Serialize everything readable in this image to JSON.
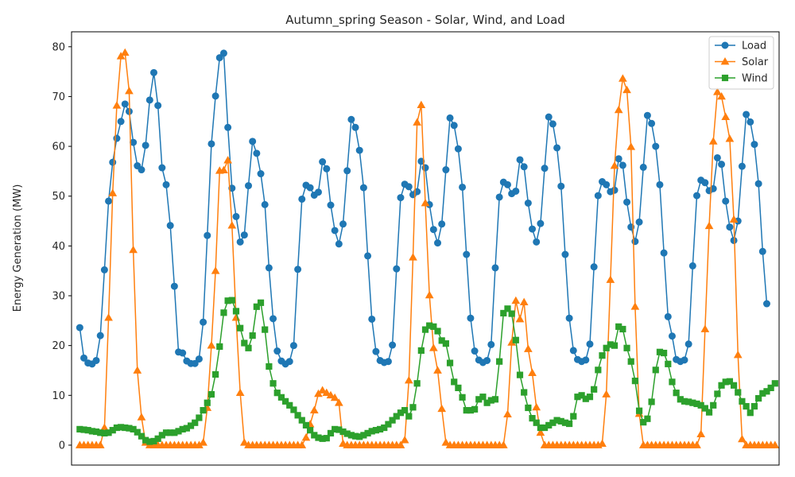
{
  "chart_data": {
    "type": "line",
    "title": "Autumn_spring Season - Solar, Wind, and Load",
    "xlabel": "",
    "ylabel": "Energy Generation (MW)",
    "xlim": [
      -2,
      170
    ],
    "ylim": [
      -4,
      83
    ],
    "yticks": [
      0,
      10,
      20,
      30,
      40,
      50,
      60,
      70,
      80
    ],
    "grid": false,
    "legend_position": "top-right",
    "series": [
      {
        "name": "Load",
        "color": "#1f77b4",
        "marker": "circle",
        "values": [
          23.6,
          17.5,
          16.5,
          16.3,
          17.0,
          22.0,
          35.2,
          49.0,
          56.8,
          61.6,
          65.0,
          68.5,
          67.0,
          60.8,
          56.1,
          55.3,
          60.2,
          69.3,
          74.8,
          68.2,
          55.7,
          52.3,
          44.1,
          31.9,
          18.7,
          18.5,
          16.9,
          16.4,
          16.4,
          17.3,
          24.7,
          42.1,
          60.5,
          70.1,
          77.8,
          78.7,
          63.8,
          51.6,
          45.9,
          40.8,
          42.2,
          52.1,
          61.0,
          58.6,
          54.5,
          48.3,
          35.6,
          25.4,
          18.9,
          16.9,
          16.3,
          16.8,
          20.0,
          35.3,
          49.4,
          52.2,
          51.7,
          50.2,
          50.8,
          56.9,
          55.5,
          48.2,
          43.1,
          40.4,
          44.4,
          55.1,
          65.4,
          63.8,
          59.2,
          51.7,
          38.0,
          25.3,
          18.8,
          17.0,
          16.6,
          16.8,
          20.1,
          35.4,
          49.7,
          52.4,
          51.9,
          50.3,
          50.9,
          57.0,
          55.7,
          48.3,
          43.3,
          40.6,
          44.4,
          55.3,
          65.7,
          64.2,
          59.5,
          51.8,
          38.3,
          25.5,
          18.9,
          17.1,
          16.6,
          17.0,
          20.2,
          35.6,
          49.8,
          52.8,
          52.3,
          50.5,
          51.0,
          57.3,
          55.9,
          48.6,
          43.4,
          40.8,
          44.5,
          55.6,
          65.9,
          64.5,
          59.7,
          52.0,
          38.3,
          25.5,
          19.0,
          17.2,
          16.8,
          17.1,
          20.3,
          35.8,
          50.1,
          52.9,
          52.3,
          50.9,
          51.2,
          57.5,
          56.2,
          48.8,
          43.8,
          40.9,
          44.8,
          55.8,
          66.2,
          64.6,
          60.0,
          52.3,
          38.6,
          25.8,
          21.9,
          17.2,
          16.8,
          17.1,
          20.3,
          36.0,
          50.1,
          53.2,
          52.7,
          51.1,
          51.5,
          57.7,
          56.4,
          49.0,
          43.8,
          41.1,
          45.0,
          56.0,
          66.4,
          64.9,
          60.4,
          52.5,
          38.9,
          28.4
        ]
      },
      {
        "name": "Solar",
        "color": "#ff7f0e",
        "marker": "triangle",
        "values": [
          0,
          0,
          0,
          0,
          0,
          0,
          3.5,
          25.6,
          50.6,
          68.2,
          78.1,
          78.8,
          71.1,
          39.2,
          15.0,
          5.6,
          0.5,
          0,
          0,
          0,
          0,
          0,
          0,
          0,
          0,
          0,
          0,
          0,
          0,
          0,
          0.5,
          7.5,
          20.0,
          35.0,
          55.1,
          55.2,
          57.2,
          44.1,
          25.6,
          10.5,
          0.5,
          0,
          0,
          0,
          0,
          0,
          0,
          0,
          0,
          0,
          0,
          0,
          0,
          0,
          0,
          1.5,
          4.2,
          7.0,
          10.3,
          11.0,
          10.5,
          10.0,
          9.5,
          8.5,
          0.3,
          0,
          0,
          0,
          0,
          0,
          0,
          0,
          0,
          0,
          0,
          0,
          0,
          0,
          0,
          1.0,
          13.0,
          37.7,
          64.8,
          68.3,
          48.6,
          30.1,
          19.5,
          15.0,
          7.3,
          0.5,
          0,
          0,
          0,
          0,
          0,
          0,
          0,
          0,
          0,
          0,
          0,
          0,
          0,
          0,
          6.2,
          20.6,
          29.0,
          25.3,
          28.7,
          19.3,
          14.5,
          7.6,
          2.5,
          0,
          0,
          0,
          0,
          0,
          0,
          0,
          0,
          0,
          0,
          0,
          0,
          0,
          0,
          0.3,
          10.2,
          33.2,
          56.1,
          67.3,
          73.6,
          71.3,
          59.9,
          27.8,
          6.3,
          0,
          0,
          0,
          0,
          0,
          0,
          0,
          0,
          0,
          0,
          0,
          0,
          0,
          0,
          2.2,
          23.3,
          44.0,
          61.0,
          70.9,
          70.0,
          65.9,
          61.5,
          45.3,
          18.1,
          1.2,
          0,
          0,
          0,
          0,
          0,
          0,
          0,
          0
        ]
      },
      {
        "name": "Wind",
        "color": "#2ca02c",
        "marker": "square",
        "values": [
          3.2,
          3.1,
          3.0,
          2.8,
          2.7,
          2.5,
          2.4,
          2.5,
          3.0,
          3.5,
          3.6,
          3.5,
          3.4,
          3.2,
          2.6,
          1.8,
          1.0,
          0.7,
          0.8,
          1.3,
          2.0,
          2.5,
          2.5,
          2.5,
          2.8,
          3.2,
          3.4,
          3.9,
          4.5,
          5.5,
          7.0,
          8.5,
          10.2,
          14.2,
          19.8,
          26.6,
          29.0,
          29.1,
          26.9,
          23.5,
          20.5,
          19.5,
          22.0,
          27.8,
          28.6,
          23.2,
          15.8,
          12.4,
          10.5,
          9.6,
          8.8,
          8.0,
          7.1,
          6.0,
          5.0,
          4.0,
          3.0,
          2.0,
          1.5,
          1.3,
          1.4,
          2.4,
          3.2,
          3.1,
          2.7,
          2.3,
          2.0,
          1.8,
          1.7,
          2.0,
          2.4,
          2.8,
          3.0,
          3.2,
          3.5,
          4.2,
          5.0,
          5.8,
          6.5,
          7.0,
          5.8,
          7.6,
          12.4,
          19.0,
          23.2,
          24.0,
          23.8,
          22.9,
          21.0,
          20.4,
          16.5,
          12.7,
          11.5,
          9.6,
          7.0,
          7.0,
          7.2,
          9.2,
          9.7,
          8.5,
          9.0,
          9.2,
          16.8,
          26.5,
          27.4,
          26.4,
          21.1,
          14.1,
          10.6,
          7.5,
          5.4,
          4.5,
          3.5,
          3.5,
          4.0,
          4.5,
          5.0,
          4.8,
          4.5,
          4.3,
          5.8,
          9.7,
          10.0,
          9.3,
          9.7,
          11.2,
          15.1,
          18.0,
          19.5,
          20.2,
          20.0,
          23.8,
          23.3,
          19.5,
          16.8,
          12.9,
          6.9,
          4.6,
          5.3,
          8.7,
          15.1,
          18.7,
          18.5,
          16.3,
          12.7,
          10.5,
          9.2,
          8.8,
          8.7,
          8.5,
          8.3,
          8.0,
          7.4,
          6.6,
          8.0,
          10.3,
          12.0,
          12.7,
          12.8,
          12.0,
          10.6,
          8.8,
          7.8,
          6.5,
          7.8,
          9.4,
          10.4,
          10.8,
          11.5,
          12.4
        ]
      }
    ]
  }
}
